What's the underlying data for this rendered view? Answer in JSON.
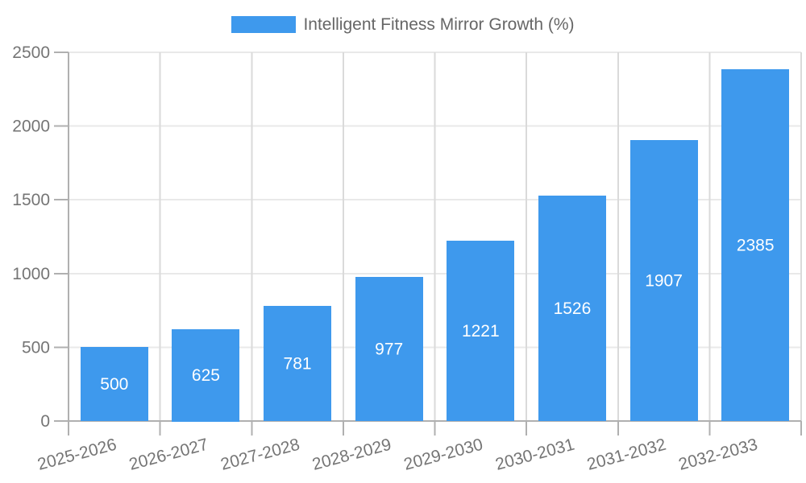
{
  "chart_data": {
    "type": "bar",
    "title": "Intelligent Fitness Mirror Growth (%)",
    "series_name": "Intelligent Fitness Mirror Growth (%)",
    "categories": [
      "2025-2026",
      "2026-2027",
      "2027-2028",
      "2028-2029",
      "2029-2030",
      "2030-2031",
      "2031-2032",
      "2032-2033"
    ],
    "values": [
      500,
      625,
      781,
      977,
      1221,
      1526,
      1907,
      2385
    ],
    "xlabel": "",
    "ylabel": "",
    "ylim": [
      0,
      2500
    ],
    "yticks": [
      0,
      500,
      1000,
      1500,
      2000,
      2500
    ],
    "grid": true,
    "legend_position": "top",
    "x_label_rotation_deg": -15,
    "colors": {
      "bar": "#3e99ed",
      "value_label": "#ffffff",
      "tick_text": "#757575",
      "legend_text": "#666666",
      "axis": "#b0b0b0",
      "grid_h": "#e9e9e9",
      "grid_v": "#dadada",
      "background": "#ffffff"
    }
  }
}
